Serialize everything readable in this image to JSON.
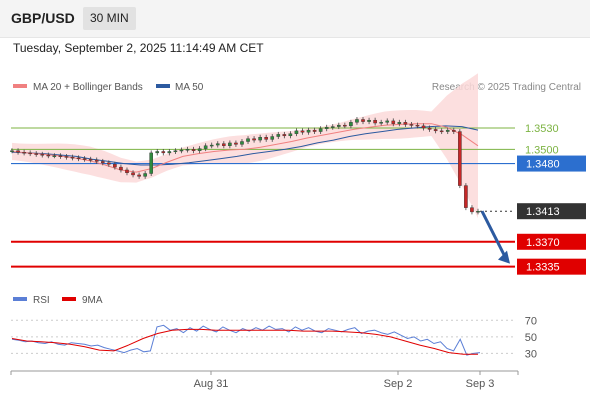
{
  "header": {
    "symbol": "GBP/USD",
    "interval": "30 MIN",
    "datetime": "Tuesday, September 2, 2025 11:14:49 AM CET"
  },
  "legend": {
    "ma20_label": "MA 20 + Bollinger Bands",
    "ma20_color": "#f08080",
    "ma50_label": "MA 50",
    "ma50_color": "#2c5aa0",
    "credit": "Research © 2025 Trading Central"
  },
  "rsi_legend": {
    "rsi_label": "RSI",
    "rsi_color": "#5b7fd6",
    "ma_label": "9MA",
    "ma_color": "#e00000"
  },
  "levels": [
    {
      "value": 1.353,
      "label": "1.3530",
      "kind": "resistance",
      "color": "#7cb342"
    },
    {
      "value": 1.35,
      "label": "1.3500",
      "kind": "resistance",
      "color": "#7cb342"
    },
    {
      "value": 1.348,
      "label": "1.3480",
      "kind": "pivot",
      "color": "#2c6fcf"
    },
    {
      "value": 1.3413,
      "label": "1.3413",
      "kind": "last-price",
      "color": "#333333"
    },
    {
      "value": 1.337,
      "label": "1.3370",
      "kind": "support",
      "color": "#e00000"
    },
    {
      "value": 1.3335,
      "label": "1.3335",
      "kind": "support",
      "color": "#e00000"
    }
  ],
  "x_axis_labels": [
    "Aug 31",
    "Sep 2",
    "Sep 3"
  ],
  "rsi_axis_labels": [
    "70",
    "50",
    "30"
  ],
  "chart_data": [
    {
      "type": "candlestick",
      "title": "GBP/USD",
      "ylim": [
        1.3305,
        1.3575
      ],
      "series": [
        {
          "name": "Close",
          "values": [
            1.3498,
            1.3496,
            1.3495,
            1.3494,
            1.3493,
            1.3492,
            1.3491,
            1.3491,
            1.349,
            1.3489,
            1.3488,
            1.3487,
            1.3486,
            1.3485,
            1.3483,
            1.3481,
            1.3479,
            1.3475,
            1.3471,
            1.3467,
            1.3464,
            1.3462,
            1.3466,
            1.3495,
            1.3497,
            1.3495,
            1.3497,
            1.3498,
            1.3499,
            1.35,
            1.3498,
            1.3501,
            1.3505,
            1.3506,
            1.3508,
            1.3505,
            1.3509,
            1.3507,
            1.3511,
            1.3515,
            1.3513,
            1.3517,
            1.3514,
            1.3518,
            1.3521,
            1.3519,
            1.3522,
            1.3526,
            1.3524,
            1.3527,
            1.3525,
            1.3529,
            1.3531,
            1.3532,
            1.3534,
            1.3533,
            1.3538,
            1.3542,
            1.3539,
            1.3541,
            1.3537,
            1.3538,
            1.354,
            1.3536,
            1.3538,
            1.3535,
            1.3534,
            1.3533,
            1.353,
            1.3528,
            1.3526,
            1.3525,
            1.3527,
            1.3525,
            1.3449,
            1.3418,
            1.3412,
            1.3413
          ]
        },
        {
          "name": "MA 20",
          "values": [
            1.3497,
            1.3495,
            1.3493,
            1.3491,
            1.3488,
            1.3484,
            1.3478,
            1.3471,
            1.3468,
            1.3473,
            1.3482,
            1.349,
            1.3494,
            1.3497,
            1.3499,
            1.35,
            1.3503,
            1.3507,
            1.3511,
            1.3516,
            1.352,
            1.3524,
            1.3528,
            1.3531,
            1.3534,
            1.3535,
            1.3536,
            1.3536,
            1.3531,
            1.352,
            1.3505
          ]
        },
        {
          "name": "MA 50",
          "values": [
            1.3496,
            1.3495,
            1.3494,
            1.3492,
            1.349,
            1.3486,
            1.3483,
            1.348,
            1.3478,
            1.3478,
            1.3479,
            1.3481,
            1.3484,
            1.3487,
            1.349,
            1.3494,
            1.3497,
            1.35,
            1.3504,
            1.3509,
            1.3513,
            1.3518,
            1.3522,
            1.3525,
            1.3528,
            1.353,
            1.3532,
            1.3533,
            1.3532,
            1.3527
          ]
        }
      ],
      "levels": [
        1.353,
        1.35,
        1.348,
        1.3413,
        1.337,
        1.3335
      ],
      "last_price": 1.3413,
      "forecast_target": 1.3335,
      "x_tick_labels": [
        "Aug 31",
        "Sep 2",
        "Sep 3"
      ],
      "grid": false
    },
    {
      "type": "line",
      "title": "RSI",
      "ylim": [
        10,
        80
      ],
      "y_ticks": [
        70,
        50,
        30
      ],
      "series": [
        {
          "name": "RSI",
          "values": [
            47,
            46,
            44,
            45,
            43,
            42,
            44,
            41,
            40,
            43,
            42,
            41,
            39,
            40,
            37,
            35,
            33,
            31,
            34,
            36,
            32,
            33,
            62,
            64,
            58,
            60,
            55,
            61,
            57,
            63,
            59,
            56,
            62,
            58,
            55,
            60,
            57,
            61,
            58,
            63,
            59,
            60,
            56,
            62,
            58,
            61,
            57,
            55,
            60,
            58,
            56,
            59,
            61,
            54,
            57,
            58,
            55,
            53,
            56,
            52,
            48,
            50,
            45,
            47,
            42,
            44,
            36,
            33,
            47,
            28,
            30,
            31
          ]
        },
        {
          "name": "9MA",
          "values": [
            48,
            45,
            44,
            43,
            41,
            38,
            34,
            33,
            40,
            48,
            54,
            58,
            59,
            59,
            58,
            58,
            58,
            58,
            58,
            58,
            57,
            57,
            57,
            56,
            55,
            53,
            50,
            45,
            40,
            36,
            31,
            29,
            29
          ]
        }
      ]
    }
  ]
}
